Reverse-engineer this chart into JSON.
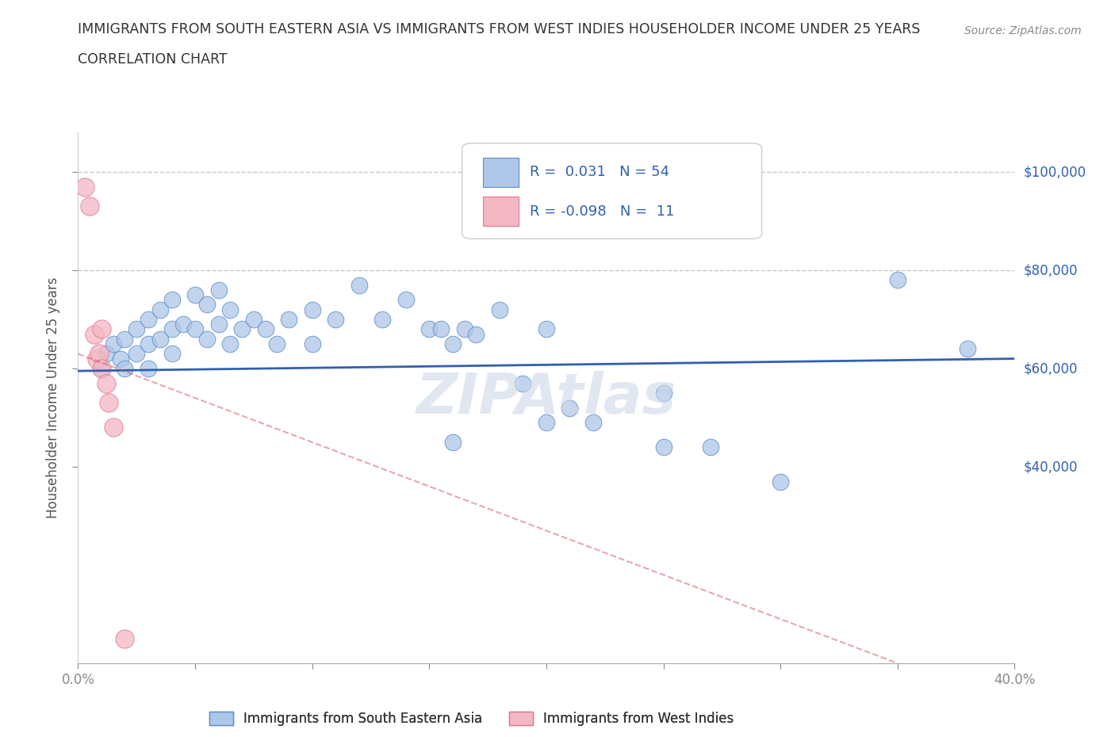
{
  "title_line1": "IMMIGRANTS FROM SOUTH EASTERN ASIA VS IMMIGRANTS FROM WEST INDIES HOUSEHOLDER INCOME UNDER 25 YEARS",
  "title_line2": "CORRELATION CHART",
  "source_text": "Source: ZipAtlas.com",
  "ylabel": "Householder Income Under 25 years",
  "xlim": [
    0.0,
    0.4
  ],
  "ylim": [
    0,
    108000
  ],
  "yticks": [
    40000,
    60000,
    80000,
    100000
  ],
  "ytick_labels": [
    "$40,000",
    "$60,000",
    "$80,000",
    "$100,000"
  ],
  "xticks": [
    0.0,
    0.05,
    0.1,
    0.15,
    0.2,
    0.25,
    0.3,
    0.35,
    0.4
  ],
  "blue_R": 0.031,
  "blue_N": 54,
  "pink_R": -0.098,
  "pink_N": 11,
  "blue_color": "#aec6e8",
  "pink_color": "#f4b8c4",
  "blue_edge_color": "#5b8fc9",
  "pink_edge_color": "#e07890",
  "blue_line_color": "#3060b0",
  "pink_line_color": "#d05060",
  "legend_text_color": "#3060b0",
  "hline1_y": 80000,
  "hline2_y": 100000,
  "hline_color": "#c8c8c8",
  "blue_scatter_x": [
    0.01,
    0.012,
    0.015,
    0.018,
    0.02,
    0.02,
    0.025,
    0.025,
    0.03,
    0.03,
    0.03,
    0.035,
    0.035,
    0.04,
    0.04,
    0.04,
    0.045,
    0.05,
    0.05,
    0.055,
    0.055,
    0.06,
    0.06,
    0.065,
    0.065,
    0.07,
    0.075,
    0.08,
    0.085,
    0.09,
    0.1,
    0.1,
    0.11,
    0.12,
    0.13,
    0.14,
    0.15,
    0.155,
    0.16,
    0.165,
    0.17,
    0.18,
    0.19,
    0.2,
    0.21,
    0.22,
    0.25,
    0.27,
    0.3,
    0.35,
    0.2,
    0.25,
    0.38,
    0.16
  ],
  "blue_scatter_y": [
    60000,
    63000,
    65000,
    62000,
    66000,
    60000,
    68000,
    63000,
    70000,
    65000,
    60000,
    72000,
    66000,
    74000,
    68000,
    63000,
    69000,
    75000,
    68000,
    73000,
    66000,
    76000,
    69000,
    72000,
    65000,
    68000,
    70000,
    68000,
    65000,
    70000,
    72000,
    65000,
    70000,
    77000,
    70000,
    74000,
    68000,
    68000,
    65000,
    68000,
    67000,
    72000,
    57000,
    49000,
    52000,
    49000,
    55000,
    44000,
    37000,
    78000,
    68000,
    44000,
    64000,
    45000
  ],
  "pink_scatter_x": [
    0.003,
    0.005,
    0.007,
    0.008,
    0.009,
    0.01,
    0.01,
    0.012,
    0.013,
    0.015,
    0.02
  ],
  "pink_scatter_y": [
    97000,
    93000,
    67000,
    62000,
    63000,
    68000,
    60000,
    57000,
    53000,
    48000,
    5000
  ],
  "blue_trend_x": [
    0.0,
    0.4
  ],
  "blue_trend_y": [
    59500,
    62000
  ],
  "pink_trend_x": [
    0.0,
    0.35
  ],
  "pink_trend_y": [
    63000,
    0
  ],
  "watermark_text": "ZIPAtlas",
  "background_color": "#ffffff"
}
